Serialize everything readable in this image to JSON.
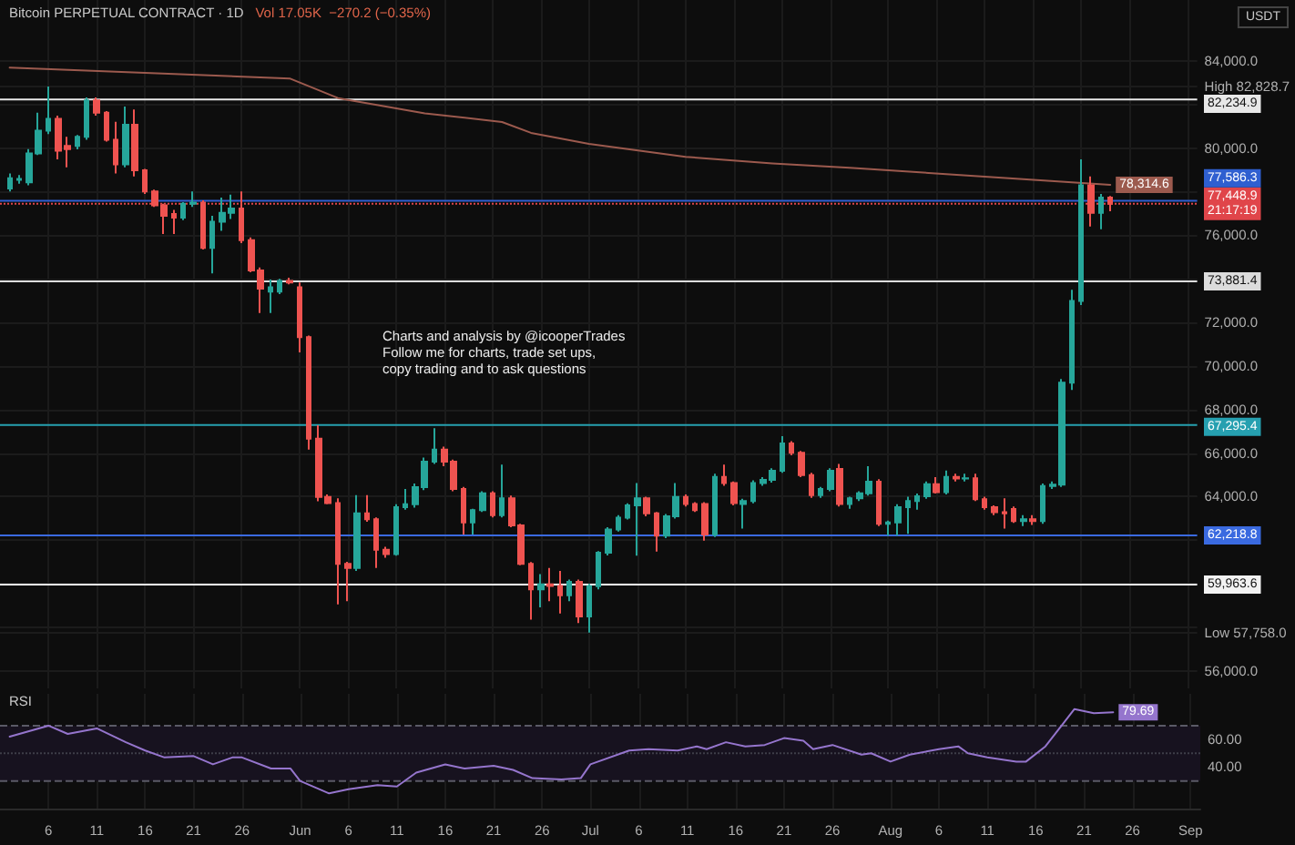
{
  "chart_data": [
    {
      "type": "candlestick",
      "title": "Bitcoin PERPETUAL CONTRACT · 1D",
      "subtitle": "Vol 17.05K  −270.2 (−0.35%)",
      "ylabel": "USDT",
      "x": [
        "--05-02",
        "--05-03",
        "--05-04",
        "--05-05",
        "--05-06",
        "--05-07",
        "--05-08",
        "--05-09",
        "--05-10",
        "--05-11",
        "--05-12",
        "--05-13",
        "--05-14",
        "--05-15",
        "--05-16",
        "--05-17",
        "--05-18",
        "--05-19",
        "--05-20",
        "--05-21",
        "--05-22",
        "--05-23",
        "--05-24",
        "--05-25",
        "--05-26",
        "--05-27",
        "--05-28",
        "--05-29",
        "--05-30",
        "--05-31",
        "--06-01",
        "--06-02",
        "--06-03",
        "--06-04",
        "--06-05",
        "--06-06",
        "--06-07",
        "--06-08",
        "--06-09",
        "--06-10",
        "--06-11",
        "--06-12",
        "--06-13",
        "--06-14",
        "--06-15",
        "--06-16",
        "--06-17",
        "--06-18",
        "--06-19",
        "--06-20",
        "--06-21",
        "--06-22",
        "--06-23",
        "--06-24",
        "--06-25",
        "--06-26",
        "--06-27",
        "--06-28",
        "--06-29",
        "--06-30",
        "--07-01",
        "--07-02",
        "--07-03",
        "--07-04",
        "--07-05",
        "--07-06",
        "--07-07",
        "--07-08",
        "--07-09",
        "--07-10",
        "--07-11",
        "--07-12",
        "--07-13",
        "--07-14",
        "--07-15",
        "--07-16",
        "--07-17",
        "--07-18",
        "--07-19",
        "--07-20",
        "--07-21",
        "--07-22",
        "--07-23",
        "--07-24",
        "--07-25",
        "--07-26",
        "--07-27",
        "--07-28",
        "--07-29",
        "--07-30",
        "--07-31",
        "--08-01",
        "--08-02",
        "--08-03",
        "--08-04",
        "--08-05",
        "--08-06",
        "--08-07",
        "--08-08",
        "--08-09",
        "--08-10",
        "--08-11",
        "--08-12",
        "--08-13",
        "--08-14",
        "--08-15",
        "--08-16",
        "--08-17",
        "--08-18",
        "--08-19",
        "--08-20",
        "--08-21",
        "--08-22",
        "--08-23",
        "--08-24"
      ],
      "ohlc": [
        [
          78150,
          78840,
          78010,
          78620
        ],
        [
          78540,
          78760,
          78370,
          78590
        ],
        [
          78430,
          79960,
          78290,
          79760
        ],
        [
          79760,
          81630,
          79680,
          80800
        ],
        [
          80800,
          82828.7,
          80650,
          81350
        ],
        [
          81350,
          81490,
          79490,
          79880
        ],
        [
          80100,
          80520,
          79120,
          79960
        ],
        [
          80100,
          80600,
          79950,
          80520
        ],
        [
          80520,
          82330,
          80380,
          82190
        ],
        [
          82190,
          82330,
          81490,
          81630
        ],
        [
          81630,
          81700,
          80300,
          80380
        ],
        [
          80380,
          81210,
          78840,
          79260
        ],
        [
          79260,
          81910,
          79120,
          81070
        ],
        [
          81070,
          81770,
          78700,
          78980
        ],
        [
          78980,
          79050,
          77900,
          78010
        ],
        [
          78010,
          78100,
          77300,
          77370
        ],
        [
          77370,
          77450,
          76060,
          76890
        ],
        [
          76980,
          77170,
          76060,
          76810
        ],
        [
          76810,
          77520,
          76700,
          77450
        ],
        [
          77450,
          78010,
          77300,
          77500
        ],
        [
          77500,
          77600,
          75350,
          75420
        ],
        [
          75420,
          76890,
          74250,
          76620
        ],
        [
          76620,
          77730,
          76200,
          77030
        ],
        [
          77030,
          77870,
          76750,
          77230
        ],
        [
          77230,
          78010,
          75640,
          75780
        ],
        [
          75780,
          75900,
          74300,
          74390
        ],
        [
          74390,
          74520,
          72430,
          73550
        ],
        [
          73410,
          73970,
          72430,
          73610
        ],
        [
          73410,
          74000,
          73300,
          73910
        ],
        [
          73910,
          74050,
          73750,
          73830
        ],
        [
          73610,
          73830,
          70620,
          71320
        ],
        [
          71320,
          71400,
          66160,
          66660
        ],
        [
          66660,
          67280,
          63790,
          63990
        ],
        [
          63990,
          64100,
          63650,
          63710
        ],
        [
          63710,
          63930,
          59060,
          60920
        ],
        [
          60920,
          61010,
          59200,
          60730
        ],
        [
          60730,
          64070,
          60590,
          63240
        ],
        [
          63240,
          64070,
          62850,
          62960
        ],
        [
          62960,
          63050,
          60730,
          61560
        ],
        [
          61560,
          61700,
          61200,
          61370
        ],
        [
          61370,
          63650,
          61290,
          63520
        ],
        [
          63520,
          64350,
          63400,
          63650
        ],
        [
          63650,
          64600,
          63500,
          64440
        ],
        [
          64440,
          65800,
          64300,
          65610
        ],
        [
          65610,
          67140,
          65500,
          66160
        ],
        [
          66160,
          66300,
          65400,
          65610
        ],
        [
          65610,
          65700,
          64250,
          64350
        ],
        [
          64350,
          64450,
          62260,
          62820
        ],
        [
          62820,
          63450,
          62260,
          63380
        ],
        [
          63380,
          64250,
          63300,
          64160
        ],
        [
          64160,
          64250,
          63050,
          63150
        ],
        [
          63150,
          65470,
          63050,
          63930
        ],
        [
          63930,
          64050,
          62600,
          62680
        ],
        [
          62680,
          62750,
          60850,
          60920
        ],
        [
          60920,
          61000,
          58360,
          59750
        ],
        [
          59750,
          60450,
          58920,
          59980
        ],
        [
          59980,
          60730,
          59200,
          59900
        ],
        [
          59900,
          60590,
          58640,
          59470
        ],
        [
          59470,
          60200,
          59200,
          60090
        ],
        [
          60090,
          60200,
          58200,
          58500
        ],
        [
          58500,
          60000,
          57758.0,
          59890
        ],
        [
          59890,
          61500,
          59750,
          61430
        ],
        [
          61430,
          62600,
          61300,
          62490
        ],
        [
          62490,
          63150,
          62400,
          63040
        ],
        [
          63040,
          63700,
          62950,
          63600
        ],
        [
          63600,
          64630,
          61290,
          63930
        ],
        [
          63930,
          64000,
          63100,
          63240
        ],
        [
          63240,
          63300,
          61480,
          62210
        ],
        [
          62210,
          63200,
          62100,
          63100
        ],
        [
          63100,
          64630,
          63000,
          63990
        ],
        [
          63990,
          64100,
          63550,
          63660
        ],
        [
          63660,
          63750,
          63300,
          63380
        ],
        [
          63660,
          63750,
          61980,
          62260
        ],
        [
          62260,
          65050,
          62150,
          64910
        ],
        [
          64910,
          65470,
          64500,
          64630
        ],
        [
          64630,
          64700,
          63600,
          63710
        ],
        [
          63660,
          63900,
          62540,
          63800
        ],
        [
          63800,
          64750,
          63700,
          64630
        ],
        [
          64630,
          64900,
          64500,
          64770
        ],
        [
          64770,
          65300,
          64650,
          65190
        ],
        [
          65190,
          66780,
          65100,
          66440
        ],
        [
          66440,
          66550,
          65900,
          66020
        ],
        [
          66020,
          66100,
          64900,
          64990
        ],
        [
          64990,
          65100,
          63950,
          64070
        ],
        [
          64070,
          64450,
          63950,
          64350
        ],
        [
          64350,
          65300,
          64250,
          65190
        ],
        [
          65270,
          65500,
          63550,
          63660
        ],
        [
          63660,
          64000,
          63450,
          63930
        ],
        [
          63930,
          64250,
          63800,
          64160
        ],
        [
          64160,
          65400,
          64050,
          64690
        ],
        [
          64690,
          64800,
          62650,
          62760
        ],
        [
          62760,
          62900,
          62210,
          62820
        ],
        [
          62820,
          63650,
          62210,
          63520
        ],
        [
          63520,
          64000,
          62300,
          63800
        ],
        [
          63800,
          64150,
          63400,
          64020
        ],
        [
          64020,
          64700,
          63900,
          64570
        ],
        [
          64570,
          64900,
          64150,
          64210
        ],
        [
          64210,
          65200,
          64100,
          64910
        ],
        [
          64910,
          65050,
          64700,
          64830
        ],
        [
          64830,
          65050,
          64700,
          64850
        ],
        [
          64850,
          65050,
          63800,
          63880
        ],
        [
          63880,
          64000,
          63400,
          63520
        ],
        [
          63520,
          63600,
          63150,
          63290
        ],
        [
          63290,
          63930,
          62540,
          63240
        ],
        [
          63430,
          63550,
          62800,
          62880
        ],
        [
          62880,
          63150,
          62650,
          62960
        ],
        [
          62960,
          63150,
          62700,
          62880
        ],
        [
          62880,
          64600,
          62750,
          64490
        ],
        [
          64490,
          64700,
          64350,
          64550
        ],
        [
          64550,
          69400,
          64450,
          69230
        ],
        [
          69230,
          73500,
          68900,
          72990
        ],
        [
          72990,
          79490,
          72800,
          78290
        ],
        [
          78290,
          78700,
          76400,
          77030
        ],
        [
          77030,
          77900,
          76280,
          77730
        ],
        [
          77730,
          77800,
          77100,
          77448.9
        ]
      ],
      "series": [
        {
          "type": "line",
          "color": "#9c5a4e",
          "x": [
            "--05-02",
            "--05-31",
            "--06-05",
            "--06-14",
            "--06-22",
            "--06-25",
            "--07-01",
            "--07-11",
            "--07-20",
            "--07-28",
            "--08-24"
          ],
          "values": [
            83700,
            83200,
            82300,
            81600,
            81200,
            80700,
            80200,
            79600,
            79300,
            79100,
            78314.6
          ],
          "value_labels": [
            null,
            null,
            null,
            null,
            null,
            null,
            null,
            null,
            null,
            null,
            "78,314.6"
          ]
        }
      ],
      "xlim": [
        "--05-01",
        "--09-02"
      ],
      "xticks": [
        {
          "value": "--05-06",
          "label": "6"
        },
        {
          "value": "--05-11",
          "label": "11"
        },
        {
          "value": "--05-16",
          "label": "16"
        },
        {
          "value": "--05-21",
          "label": "21"
        },
        {
          "value": "--05-26",
          "label": "26"
        },
        {
          "value": "--06-01",
          "label": "Jun"
        },
        {
          "value": "--06-06",
          "label": "6"
        },
        {
          "value": "--06-11",
          "label": "11"
        },
        {
          "value": "--06-16",
          "label": "16"
        },
        {
          "value": "--06-21",
          "label": "21"
        },
        {
          "value": "--06-26",
          "label": "26"
        },
        {
          "value": "--07-01",
          "label": "Jul"
        },
        {
          "value": "--07-06",
          "label": "6"
        },
        {
          "value": "--07-11",
          "label": "11"
        },
        {
          "value": "--07-16",
          "label": "16"
        },
        {
          "value": "--07-21",
          "label": "21"
        },
        {
          "value": "--07-26",
          "label": "26"
        },
        {
          "value": "--08-01",
          "label": "Aug"
        },
        {
          "value": "--08-06",
          "label": "6"
        },
        {
          "value": "--08-11",
          "label": "11"
        },
        {
          "value": "--08-16",
          "label": "16"
        },
        {
          "value": "--08-21",
          "label": "21"
        },
        {
          "value": "--08-26",
          "label": "26"
        },
        {
          "value": "--09-01",
          "label": "Sep"
        }
      ],
      "ylim": [
        55200,
        86800
      ],
      "yticks": [
        {
          "value": 56000,
          "label": "56,000.0"
        },
        {
          "value": 57758.0,
          "label": "Low 57,758.0"
        },
        {
          "value": 58000,
          "label": null
        },
        {
          "value": 60000,
          "label": null
        },
        {
          "value": 62000,
          "label": null
        },
        {
          "value": 64000,
          "label": "64,000.0"
        },
        {
          "value": 66000,
          "label": "66,000.0"
        },
        {
          "value": 68000,
          "label": "68,000.0"
        },
        {
          "value": 70000,
          "label": "70,000.0"
        },
        {
          "value": 72000,
          "label": "72,000.0"
        },
        {
          "value": 74000,
          "label": null
        },
        {
          "value": 76000,
          "label": "76,000.0"
        },
        {
          "value": 78000,
          "label": null
        },
        {
          "value": 80000,
          "label": "80,000.0"
        },
        {
          "value": 82000,
          "label": null
        },
        {
          "value": 82828.7,
          "label": "High 82,828.7"
        },
        {
          "value": 84000,
          "label": "84,000.0"
        }
      ],
      "tick_labels": "y",
      "grid": true,
      "ref_lines": [
        {
          "axis": "y",
          "value": 82234.9,
          "label": "82,234.9",
          "color": "#e8e8e8"
        },
        {
          "axis": "y",
          "value": 77586.3,
          "label": "77,586.3",
          "color": "#2f5fd0"
        },
        {
          "axis": "y",
          "value": 77448.9,
          "label": "77,448.9\n21:17:19",
          "color": "#e0454a",
          "line_style": "dotted"
        },
        {
          "axis": "y",
          "value": 73881.4,
          "label": "73,881.4",
          "color": "#dcdcdc"
        },
        {
          "axis": "y",
          "value": 67295.4,
          "label": "67,295.4",
          "color": "#26a0b0"
        },
        {
          "axis": "y",
          "value": 62218.8,
          "label": "62,218.8",
          "color": "#3a6ae0"
        },
        {
          "axis": "y",
          "value": 59963.6,
          "label": "59,963.6",
          "color": "#f2f2f2"
        }
      ],
      "annotations": [
        "Charts and analysis by @icooperTrades\nFollow me for charts, trade set ups,\ncopy trading and to ask questions"
      ]
    },
    {
      "type": "line",
      "title": "RSI",
      "series": [
        {
          "color": "#9575cd",
          "x": [
            "--05-02",
            "--05-06",
            "--05-08",
            "--05-11",
            "--05-14",
            "--05-16",
            "--05-18",
            "--05-21",
            "--05-23",
            "--05-25",
            "--05-26",
            "--05-29",
            "--05-31",
            "--06-01",
            "--06-04",
            "--06-06",
            "--06-09",
            "--06-11",
            "--06-13",
            "--06-16",
            "--06-18",
            "--06-21",
            "--06-23",
            "--06-25",
            "--06-28",
            "--06-30",
            "--07-01",
            "--07-05",
            "--07-07",
            "--07-10",
            "--07-12",
            "--07-13",
            "--07-15",
            "--07-17",
            "--07-19",
            "--07-21",
            "--07-23",
            "--07-24",
            "--07-26",
            "--07-29",
            "--07-30",
            "--08-01",
            "--08-03",
            "--08-06",
            "--08-08",
            "--08-09",
            "--08-11",
            "--08-14",
            "--08-15",
            "--08-17",
            "--08-19",
            "--08-20",
            "--08-22",
            "--08-24"
          ],
          "values": [
            62,
            70,
            64,
            68,
            58,
            52,
            47,
            48,
            42,
            47,
            47,
            39,
            39,
            30,
            21,
            24,
            27,
            26,
            36,
            42,
            39,
            41,
            38,
            32,
            31,
            32,
            42,
            52,
            53,
            52,
            55,
            53,
            58,
            55,
            56,
            61,
            59,
            53,
            56,
            49,
            50,
            44,
            49,
            53,
            55,
            50,
            47,
            44,
            44,
            55,
            73,
            82,
            79,
            79.69
          ],
          "value_labels": [
            null,
            null,
            null,
            null,
            null,
            null,
            null,
            null,
            null,
            null,
            null,
            null,
            null,
            null,
            null,
            null,
            null,
            null,
            null,
            null,
            null,
            null,
            null,
            null,
            null,
            null,
            null,
            null,
            null,
            null,
            null,
            null,
            null,
            null,
            null,
            null,
            null,
            null,
            null,
            null,
            null,
            null,
            null,
            null,
            null,
            null,
            null,
            null,
            null,
            null,
            null,
            null,
            null,
            "79.69"
          ]
        }
      ],
      "xlim": [
        "--05-01",
        "--09-02"
      ],
      "xticks": [
        {
          "value": "--05-06",
          "label": "6"
        },
        {
          "value": "--05-11",
          "label": "11"
        },
        {
          "value": "--05-16",
          "label": "16"
        },
        {
          "value": "--05-21",
          "label": "21"
        },
        {
          "value": "--05-26",
          "label": "26"
        },
        {
          "value": "--06-01",
          "label": "Jun"
        },
        {
          "value": "--06-06",
          "label": "6"
        },
        {
          "value": "--06-11",
          "label": "11"
        },
        {
          "value": "--06-16",
          "label": "16"
        },
        {
          "value": "--06-21",
          "label": "21"
        },
        {
          "value": "--06-26",
          "label": "26"
        },
        {
          "value": "--07-01",
          "label": "Jul"
        },
        {
          "value": "--07-06",
          "label": "6"
        },
        {
          "value": "--07-11",
          "label": "11"
        },
        {
          "value": "--07-16",
          "label": "16"
        },
        {
          "value": "--07-21",
          "label": "21"
        },
        {
          "value": "--07-26",
          "label": "26"
        },
        {
          "value": "--08-01",
          "label": "Aug"
        },
        {
          "value": "--08-06",
          "label": "6"
        },
        {
          "value": "--08-11",
          "label": "11"
        },
        {
          "value": "--08-16",
          "label": "16"
        },
        {
          "value": "--08-21",
          "label": "21"
        },
        {
          "value": "--08-26",
          "label": "26"
        },
        {
          "value": "--09-01",
          "label": "Sep"
        }
      ],
      "ylim": [
        10,
        93
      ],
      "yticks": [
        {
          "value": 40,
          "label": "40.00"
        },
        {
          "value": 60,
          "label": "60.00"
        }
      ],
      "grid": true,
      "ref_lines": [
        {
          "axis": "y",
          "value": 70,
          "color": "#5a5a66",
          "line_style": "dashed"
        },
        {
          "axis": "y",
          "value": 50,
          "color": "#3e3e48",
          "line_style": "dotted"
        },
        {
          "axis": "y",
          "value": 30,
          "color": "#5a5a66",
          "line_style": "dashed"
        }
      ],
      "bands": [
        {
          "axis": "y",
          "from": 30,
          "to": 70,
          "color": "#17121f"
        }
      ]
    }
  ]
}
